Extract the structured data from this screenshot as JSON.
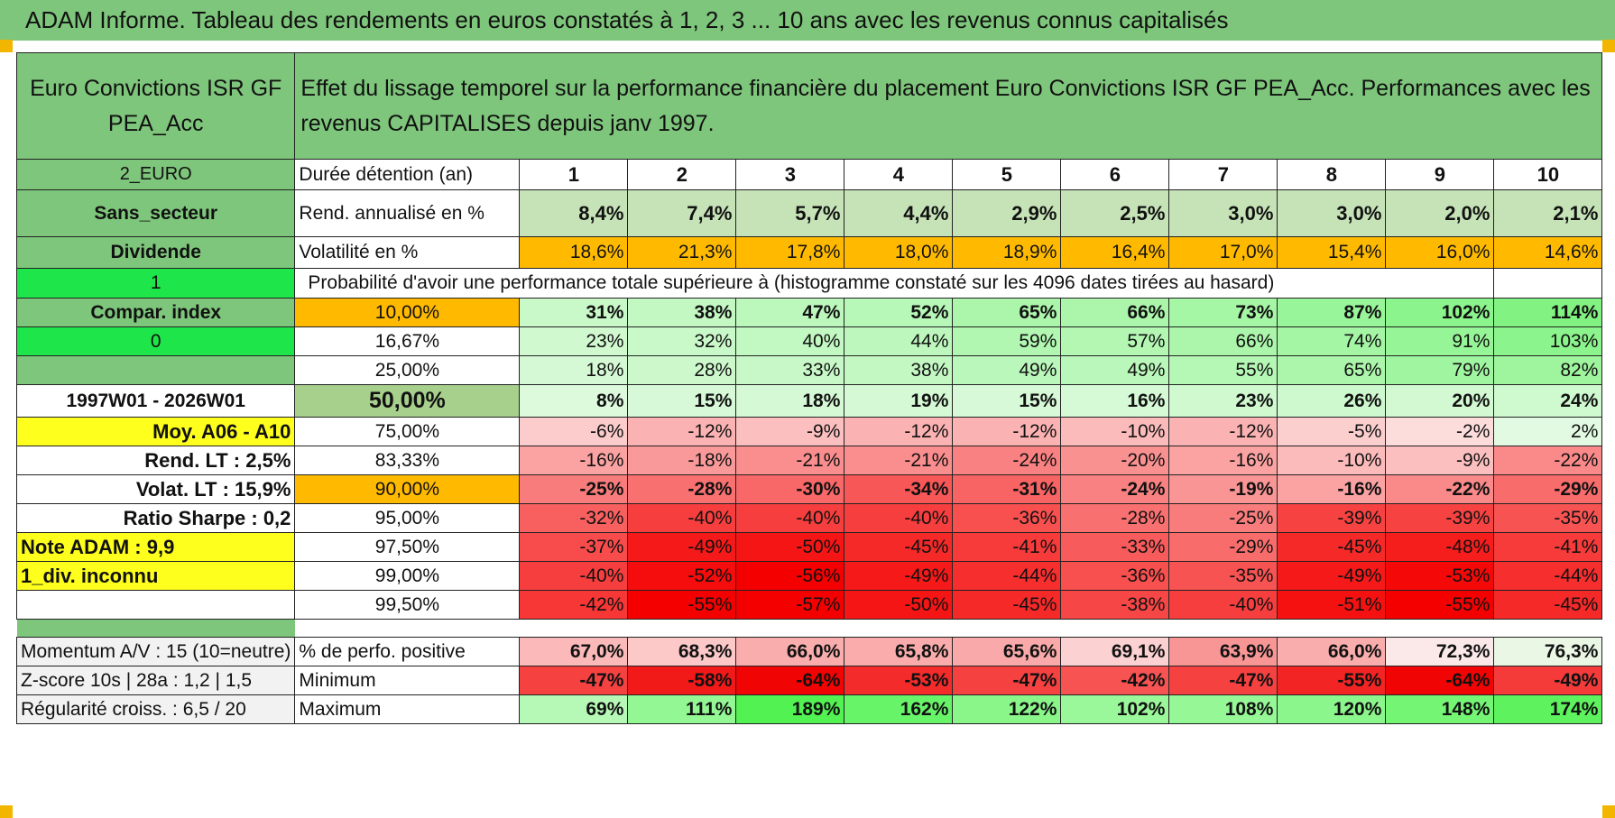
{
  "title": "ADAM Informe. Tableau des rendements en euros constatés à 1, 2, 3 ... 10 ans avec les revenus connus capitalisés",
  "header": {
    "fund_name": "Euro Convictions ISR GF PEA_Acc",
    "description": "Effet du lissage temporel sur la performance financière du placement Euro Convictions ISR GF PEA_Acc. Performances avec les revenus CAPITALISES depuis janv 1997."
  },
  "colors": {
    "title_bg": "#7ec67b",
    "label_bg": "#7ec67b",
    "bright_green": "#1ee64a",
    "yellow": "#ffff1e",
    "orange": "#ffba00",
    "accent_red": "#d42020"
  },
  "left": {
    "currency": "2_EURO",
    "sector": "Sans_secteur",
    "distribution": "Dividende",
    "flag_one": "1",
    "compar_index": "Compar. index",
    "flag_zero": "0",
    "period": "1997W01 - 2026W01",
    "moy": "Moy. A06 - A10",
    "rend_lt_label": "Rend. LT :",
    "rend_lt_value": "2,5%",
    "volat_lt_label": "Volat. LT :",
    "volat_lt_value": "15,9%",
    "sharpe_label": "Ratio Sharpe :",
    "sharpe_value": "0,2",
    "note_adam": "Note ADAM : 9,9",
    "div_inconnu": "1_div. inconnu",
    "momentum": "Momentum A/V : 15 (10=neutre)",
    "zscore": "Z-score 10s | 28a : 1,2 | 1,5",
    "regularite": "Régularité croiss. : 6,5 / 20"
  },
  "rows": {
    "duree_label": "Durée détention (an)",
    "years": [
      "1",
      "2",
      "3",
      "4",
      "5",
      "6",
      "7",
      "8",
      "9",
      "10"
    ],
    "rend_label": "Rend. annualisé en %",
    "rend": [
      "8,4%",
      "7,4%",
      "5,7%",
      "4,4%",
      "2,9%",
      "2,5%",
      "3,0%",
      "3,0%",
      "2,0%",
      "2,1%"
    ],
    "vol_label": "Volatilité en %",
    "vol": [
      "18,6%",
      "21,3%",
      "17,8%",
      "18,0%",
      "18,9%",
      "16,4%",
      "17,0%",
      "15,4%",
      "16,0%",
      "14,6%"
    ],
    "prob_text": "Probabilité d'avoir une performance totale supérieure à (histogramme constaté sur les 4096 dates tirées au hasard)"
  },
  "percentiles": [
    {
      "p": "10,00%",
      "values": [
        "31%",
        "38%",
        "47%",
        "52%",
        "65%",
        "66%",
        "73%",
        "87%",
        "102%",
        "114%"
      ]
    },
    {
      "p": "16,67%",
      "values": [
        "23%",
        "32%",
        "40%",
        "44%",
        "59%",
        "57%",
        "66%",
        "74%",
        "91%",
        "103%"
      ]
    },
    {
      "p": "25,00%",
      "values": [
        "18%",
        "28%",
        "33%",
        "38%",
        "49%",
        "49%",
        "55%",
        "65%",
        "79%",
        "82%"
      ]
    },
    {
      "p": "50,00%",
      "values": [
        "8%",
        "15%",
        "18%",
        "19%",
        "15%",
        "16%",
        "23%",
        "26%",
        "20%",
        "24%"
      ]
    },
    {
      "p": "75,00%",
      "values": [
        "-6%",
        "-12%",
        "-9%",
        "-12%",
        "-12%",
        "-10%",
        "-12%",
        "-5%",
        "-2%",
        "2%"
      ]
    },
    {
      "p": "83,33%",
      "values": [
        "-16%",
        "-18%",
        "-21%",
        "-21%",
        "-24%",
        "-20%",
        "-16%",
        "-10%",
        "-9%",
        "-22%"
      ]
    },
    {
      "p": "90,00%",
      "values": [
        "-25%",
        "-28%",
        "-30%",
        "-34%",
        "-31%",
        "-24%",
        "-19%",
        "-16%",
        "-22%",
        "-29%"
      ]
    },
    {
      "p": "95,00%",
      "values": [
        "-32%",
        "-40%",
        "-40%",
        "-40%",
        "-36%",
        "-28%",
        "-25%",
        "-39%",
        "-39%",
        "-35%"
      ]
    },
    {
      "p": "97,50%",
      "values": [
        "-37%",
        "-49%",
        "-50%",
        "-45%",
        "-41%",
        "-33%",
        "-29%",
        "-45%",
        "-48%",
        "-41%"
      ]
    },
    {
      "p": "99,00%",
      "values": [
        "-40%",
        "-52%",
        "-56%",
        "-49%",
        "-44%",
        "-36%",
        "-35%",
        "-49%",
        "-53%",
        "-44%"
      ]
    },
    {
      "p": "99,50%",
      "values": [
        "-42%",
        "-55%",
        "-57%",
        "-50%",
        "-45%",
        "-38%",
        "-40%",
        "-51%",
        "-55%",
        "-45%"
      ]
    }
  ],
  "stats": {
    "positive_label": "% de perfo. positive",
    "positive": [
      "67,0%",
      "68,3%",
      "66,0%",
      "65,8%",
      "65,6%",
      "69,1%",
      "63,9%",
      "66,0%",
      "72,3%",
      "76,3%"
    ],
    "min_label": "Minimum",
    "min": [
      "-47%",
      "-58%",
      "-64%",
      "-53%",
      "-47%",
      "-42%",
      "-47%",
      "-55%",
      "-64%",
      "-49%"
    ],
    "max_label": "Maximum",
    "max": [
      "69%",
      "111%",
      "189%",
      "162%",
      "122%",
      "102%",
      "108%",
      "120%",
      "148%",
      "174%"
    ]
  }
}
